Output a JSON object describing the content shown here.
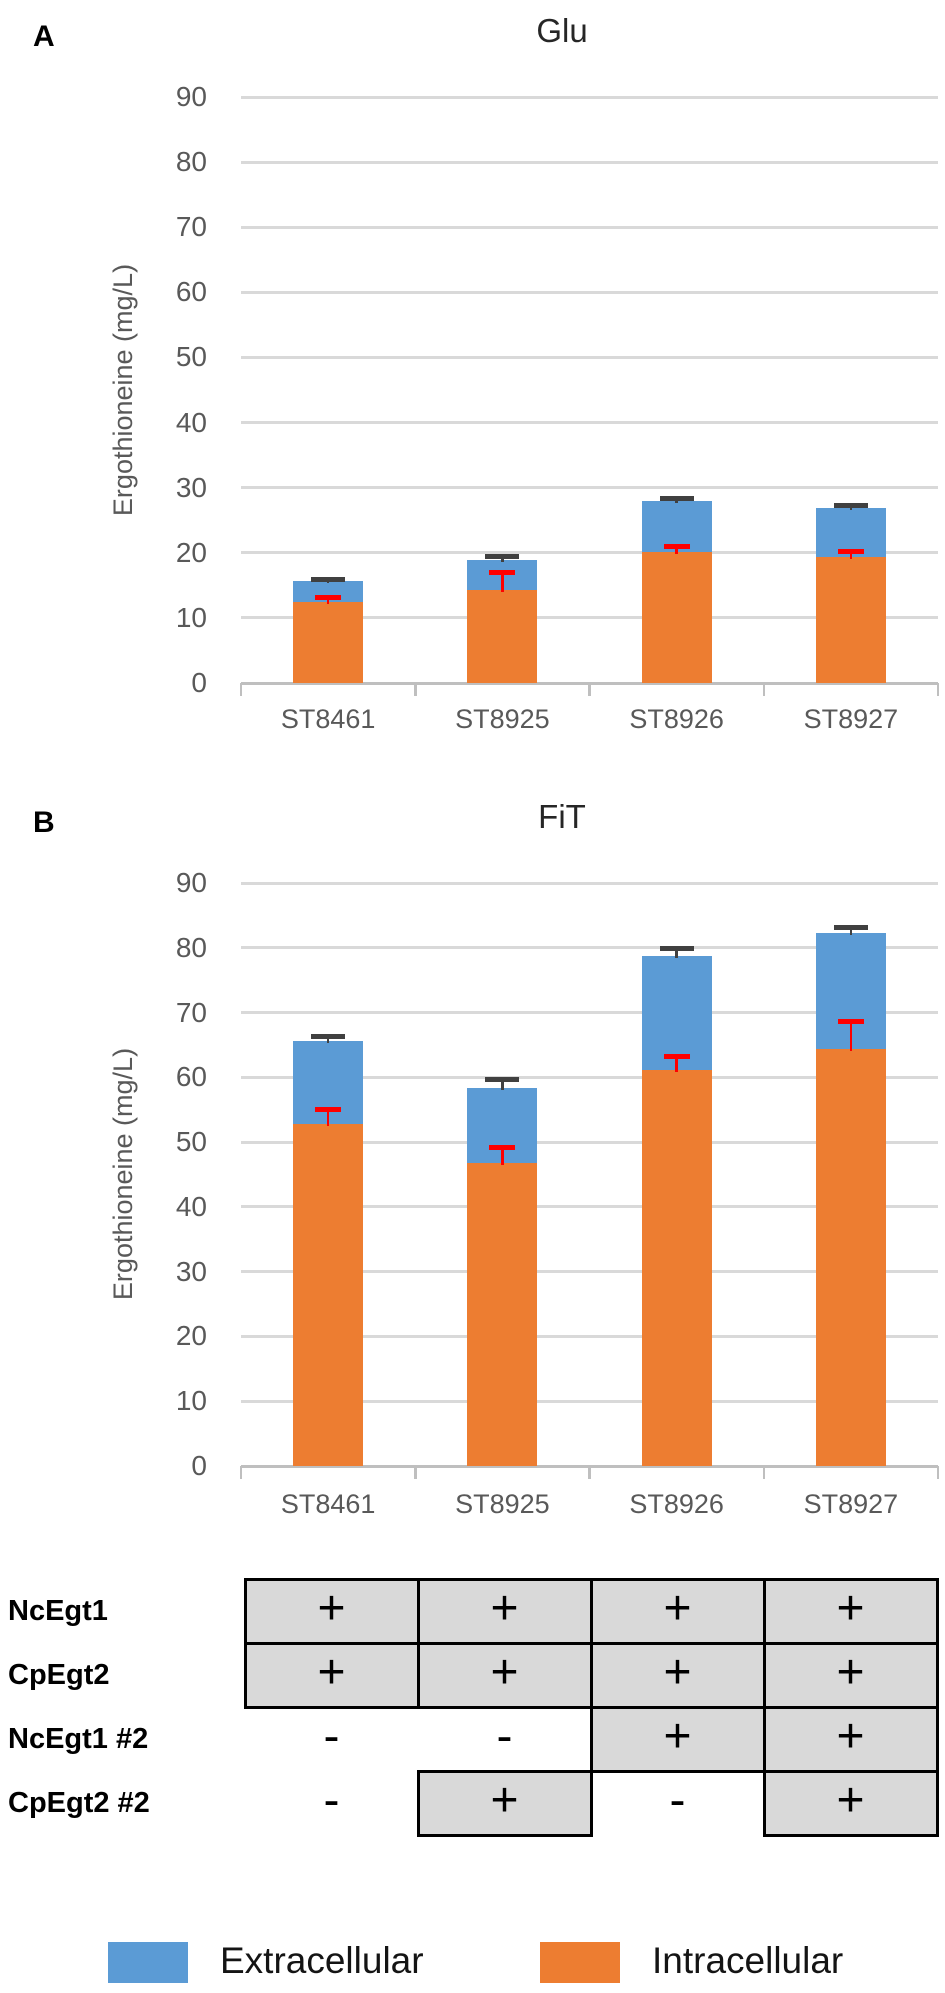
{
  "figure": {
    "panel_labels": [
      "A",
      "B"
    ]
  },
  "chart_data": [
    {
      "type": "bar",
      "stacked": true,
      "title": "Glu",
      "ylabel": "Ergothioneine (mg/L)",
      "categories": [
        "ST8461",
        "ST8925",
        "ST8926",
        "ST8927"
      ],
      "series": [
        {
          "name": "Intracellular",
          "color": "#ED7D31",
          "values": [
            12.5,
            14.3,
            20.1,
            19.3
          ],
          "error_upper": [
            13.1,
            16.9,
            20.9,
            20.2
          ],
          "error_color": "#FF0000"
        },
        {
          "name": "Extracellular",
          "color": "#5B9BD5",
          "values": [
            3.2,
            4.6,
            7.9,
            7.6
          ]
        }
      ],
      "totals": [
        15.7,
        18.9,
        28.0,
        26.9
      ],
      "totals_error_upper": [
        15.9,
        19.5,
        28.4,
        27.3
      ],
      "totals_error_color": "#404040",
      "ylim": [
        0,
        90
      ],
      "ytick_step": 10,
      "grid": true,
      "legend_position": "none"
    },
    {
      "type": "bar",
      "stacked": true,
      "title": "FiT",
      "ylabel": "Ergothioneine (mg/L)",
      "categories": [
        "ST8461",
        "ST8925",
        "ST8926",
        "ST8927"
      ],
      "series": [
        {
          "name": "Intracellular",
          "color": "#ED7D31",
          "values": [
            52.8,
            46.8,
            61.1,
            64.4
          ],
          "error_upper": [
            55.0,
            49.2,
            63.2,
            68.6
          ],
          "error_color": "#FF0000"
        },
        {
          "name": "Extracellular",
          "color": "#5B9BD5",
          "values": [
            12.8,
            11.5,
            17.6,
            17.9
          ]
        }
      ],
      "totals": [
        65.6,
        58.3,
        78.7,
        82.3
      ],
      "totals_error_upper": [
        66.3,
        59.7,
        79.9,
        83.1
      ],
      "totals_error_color": "#404040",
      "ylim": [
        0,
        90
      ],
      "ytick_step": 10,
      "grid": true,
      "legend_position": "none"
    }
  ],
  "table": {
    "columns": [
      "ST8461",
      "ST8925",
      "ST8926",
      "ST8927"
    ],
    "rows": [
      {
        "label": "NcEgt1",
        "cells": [
          {
            "value": "+",
            "boxed": true
          },
          {
            "value": "+",
            "boxed": true
          },
          {
            "value": "+",
            "boxed": true
          },
          {
            "value": "+",
            "boxed": true
          }
        ]
      },
      {
        "label": "CpEgt2",
        "cells": [
          {
            "value": "+",
            "boxed": true
          },
          {
            "value": "+",
            "boxed": true
          },
          {
            "value": "+",
            "boxed": true
          },
          {
            "value": "+",
            "boxed": true
          }
        ]
      },
      {
        "label": "NcEgt1 #2",
        "cells": [
          {
            "value": "-",
            "boxed": false
          },
          {
            "value": "-",
            "boxed": false
          },
          {
            "value": "+",
            "boxed": true
          },
          {
            "value": "+",
            "boxed": true
          }
        ]
      },
      {
        "label": "CpEgt2 #2",
        "cells": [
          {
            "value": "-",
            "boxed": false
          },
          {
            "value": "+",
            "boxed": true
          },
          {
            "value": "-",
            "boxed": false
          },
          {
            "value": "+",
            "boxed": true
          }
        ]
      }
    ],
    "box_fill": "#D9D9D9",
    "box_border": "#000000"
  },
  "legend": {
    "items": [
      {
        "label": "Extracellular",
        "color": "#5B9BD5"
      },
      {
        "label": "Intracellular",
        "color": "#ED7D31"
      }
    ]
  },
  "styles": {
    "grid_color": "#D9D9D9",
    "axis_color": "#BFBFBF",
    "tick_color": "#595959"
  }
}
